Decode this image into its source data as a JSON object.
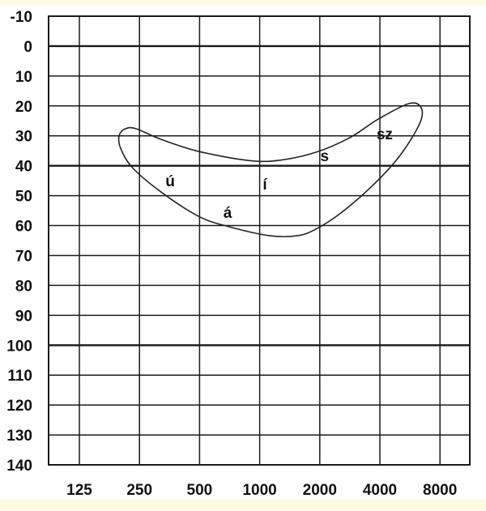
{
  "chart_data": {
    "type": "line",
    "title": "",
    "xlabel": "",
    "ylabel": "",
    "x_scale": "log2",
    "y_inverted": true,
    "grid": true,
    "x_ticks": [
      125,
      250,
      500,
      1000,
      2000,
      4000,
      8000
    ],
    "y_ticks": [
      -10,
      0,
      10,
      20,
      30,
      40,
      50,
      60,
      70,
      80,
      90,
      100,
      110,
      120,
      130,
      140
    ],
    "ylim": [
      -10,
      140
    ],
    "emphasized_y_lines": [
      0,
      40,
      100
    ],
    "region_outline": [
      [
        213,
        27.6
      ],
      [
        240,
        27.6
      ],
      [
        321,
        31.2
      ],
      [
        494,
        35.2
      ],
      [
        872,
        38.2
      ],
      [
        1244,
        38.2
      ],
      [
        1912,
        35.5
      ],
      [
        2830,
        30.6
      ],
      [
        3925,
        24.4
      ],
      [
        5600,
        19.2
      ],
      [
        6440,
        20.6
      ],
      [
        6320,
        26.0
      ],
      [
        5000,
        36.9
      ],
      [
        3640,
        46.9
      ],
      [
        2550,
        55.8
      ],
      [
        1912,
        61.2
      ],
      [
        1543,
        63.4
      ],
      [
        1123,
        63.4
      ],
      [
        703,
        60.4
      ],
      [
        494,
        56.9
      ],
      [
        321,
        48.8
      ],
      [
        231,
        40.7
      ],
      [
        201,
        34.1
      ],
      [
        198,
        29.8
      ]
    ],
    "annotations": [
      {
        "text": "ú",
        "x": 356,
        "y": 45
      },
      {
        "text": "í",
        "x": 1062,
        "y": 46
      },
      {
        "text": "á",
        "x": 691,
        "y": 55.5
      },
      {
        "text": "s",
        "x": 2115,
        "y": 36.6
      },
      {
        "text": "sz",
        "x": 4225,
        "y": 29.3
      }
    ],
    "colors": {
      "background": "#fcf9e4",
      "grid": "#1a1a1a",
      "outline": "#222222"
    }
  }
}
